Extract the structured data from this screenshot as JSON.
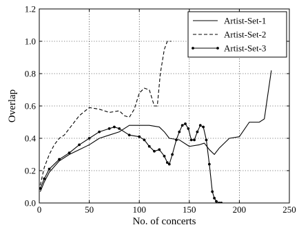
{
  "chart_data": {
    "type": "line",
    "xlabel": "No. of concerts",
    "ylabel": "Overlap",
    "xlim": [
      0,
      250
    ],
    "ylim": [
      0,
      1.2
    ],
    "xticks": [
      "0",
      "50",
      "100",
      "150",
      "200",
      "250"
    ],
    "yticks": [
      "0.0",
      "0.2",
      "0.4",
      "0.6",
      "0.8",
      "1.0",
      "1.2"
    ],
    "grid": true,
    "legend_position": "top-right",
    "series": [
      {
        "name": "Artist-Set-1",
        "style": "solid",
        "marker": "none",
        "color": "#000000",
        "x": [
          1,
          5,
          10,
          20,
          30,
          40,
          50,
          60,
          70,
          80,
          90,
          100,
          110,
          120,
          125,
          130,
          140,
          150,
          160,
          165,
          170,
          175,
          180,
          190,
          200,
          210,
          220,
          225,
          228,
          232
        ],
        "y": [
          0.07,
          0.13,
          0.19,
          0.26,
          0.3,
          0.33,
          0.36,
          0.4,
          0.42,
          0.44,
          0.48,
          0.48,
          0.48,
          0.47,
          0.44,
          0.4,
          0.39,
          0.35,
          0.36,
          0.37,
          0.33,
          0.3,
          0.34,
          0.4,
          0.41,
          0.5,
          0.5,
          0.52,
          0.65,
          0.82
        ]
      },
      {
        "name": "Artist-Set-2",
        "style": "dashed",
        "marker": "none",
        "color": "#000000",
        "x": [
          1,
          5,
          10,
          15,
          20,
          25,
          30,
          40,
          50,
          60,
          70,
          80,
          85,
          90,
          95,
          100,
          105,
          110,
          115,
          118,
          121,
          125,
          128,
          132
        ],
        "y": [
          0.11,
          0.22,
          0.3,
          0.36,
          0.4,
          0.42,
          0.46,
          0.54,
          0.59,
          0.58,
          0.56,
          0.57,
          0.54,
          0.53,
          0.58,
          0.68,
          0.71,
          0.7,
          0.6,
          0.6,
          0.8,
          0.95,
          1.0,
          1.0
        ]
      },
      {
        "name": "Artist-Set-3",
        "style": "solid",
        "marker": "dot",
        "color": "#000000",
        "x": [
          1,
          5,
          10,
          20,
          30,
          40,
          50,
          60,
          70,
          75,
          80,
          90,
          100,
          105,
          110,
          115,
          120,
          125,
          128,
          130,
          133,
          137,
          140,
          143,
          146,
          149,
          152,
          155,
          158,
          161,
          164,
          167,
          170,
          173,
          175,
          177,
          180,
          182
        ],
        "y": [
          0.09,
          0.15,
          0.21,
          0.27,
          0.31,
          0.36,
          0.4,
          0.44,
          0.46,
          0.47,
          0.46,
          0.42,
          0.41,
          0.39,
          0.35,
          0.32,
          0.33,
          0.29,
          0.25,
          0.24,
          0.3,
          0.39,
          0.44,
          0.48,
          0.49,
          0.46,
          0.39,
          0.39,
          0.44,
          0.48,
          0.47,
          0.39,
          0.24,
          0.07,
          0.03,
          0.01,
          0.0,
          0.0
        ]
      }
    ]
  }
}
